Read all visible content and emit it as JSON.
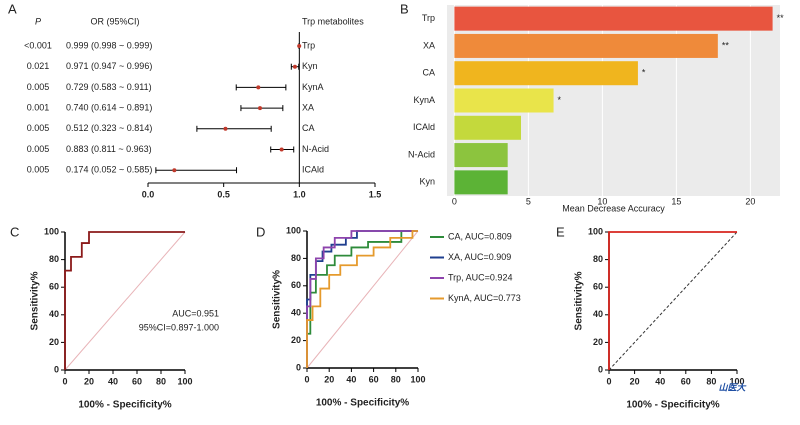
{
  "chart_data": [
    {
      "type": "forest",
      "panel_label": "A",
      "columns": [
        "P",
        "OR (95%CI)",
        "Trp metabolites"
      ],
      "categories": [
        "Trp",
        "Kyn",
        "KynA",
        "XA",
        "CA",
        "N-Acid",
        "ICAld"
      ],
      "p_labels": [
        "<0.001",
        "0.021",
        "0.005",
        "0.001",
        "0.005",
        "0.005",
        "0.005"
      ],
      "or_labels": [
        "0.999 (0.998 ~ 0.999)",
        "0.971 (0.947 ~ 0.996)",
        "0.729 (0.583 ~ 0.911)",
        "0.740 (0.614 ~ 0.891)",
        "0.512 (0.323 ~ 0.814)",
        "0.883 (0.811 ~ 0.963)",
        "0.174 (0.052 ~ 0.585)"
      ],
      "values": [
        0.999,
        0.971,
        0.729,
        0.74,
        0.512,
        0.883,
        0.174
      ],
      "lower": [
        0.998,
        0.947,
        0.583,
        0.614,
        0.323,
        0.811,
        0.052
      ],
      "upper": [
        0.999,
        0.996,
        0.911,
        0.891,
        0.814,
        0.963,
        0.585
      ],
      "xlim": [
        0,
        1.5
      ],
      "xticks": [
        {
          "value": 0,
          "label": "0.0"
        },
        0.5,
        {
          "value": 1,
          "label": "1.0"
        },
        1.5
      ],
      "reference_line": 1,
      "color": "#c0392b"
    },
    {
      "type": "bar",
      "orientation": "horizontal",
      "panel_label": "B",
      "xlabel": "Mean Decrease Accuracy",
      "categories": [
        "Trp",
        "XA",
        "CA",
        "KynA",
        "ICAld",
        "N-Acid",
        "Kyn"
      ],
      "values": [
        21.5,
        17.8,
        12.4,
        6.7,
        4.5,
        3.6,
        3.6
      ],
      "annotations": [
        "**",
        "**",
        "*",
        "*",
        null,
        null,
        null
      ],
      "colors": [
        "#e8553f",
        "#ef8a3a",
        "#f0b51e",
        "#e9e44a",
        "#c4d93c",
        "#8cc43e",
        "#5cb336"
      ],
      "xlim": [
        -0.5,
        22
      ],
      "xticks": [
        0,
        5,
        10,
        15,
        20
      ]
    },
    {
      "type": "line",
      "panel_label": "C",
      "xlabel": "100% - Specificity%",
      "ylabel": "Sensitivity%",
      "annotations": [
        "AUC=0.951",
        "95%CI=0.897-1.000"
      ],
      "series": [
        {
          "color": "#8b1a1a",
          "x": [
            0,
            0,
            5,
            5,
            14,
            14,
            20,
            20,
            25,
            100
          ],
          "values": [
            0,
            72,
            72,
            82,
            82,
            92,
            92,
            100,
            100,
            100
          ]
        }
      ],
      "xlim": [
        0,
        100
      ],
      "ylim": [
        0,
        100
      ],
      "xticks": [
        0,
        20,
        40,
        60,
        80,
        100
      ],
      "yticks": [
        0,
        20,
        40,
        60,
        80,
        100
      ],
      "diagonal": {
        "color": "#e8b4b8",
        "dashed": false
      }
    },
    {
      "type": "line",
      "panel_label": "D",
      "xlabel": "100% - Specificity%",
      "ylabel": "Sensitivity%",
      "series": [
        {
          "name": "CA, AUC=0.809",
          "color": "#2e8b3a",
          "x": [
            0,
            0,
            3,
            3,
            8,
            8,
            18,
            18,
            25,
            25,
            40,
            40,
            55,
            55,
            85,
            85,
            100
          ],
          "values": [
            0,
            25,
            25,
            55,
            55,
            68,
            68,
            75,
            75,
            82,
            82,
            88,
            88,
            92,
            92,
            100,
            100
          ]
        },
        {
          "name": "XA, AUC=0.909",
          "color": "#1f3f8f",
          "x": [
            0,
            0,
            3,
            3,
            8,
            8,
            14,
            14,
            22,
            22,
            35,
            35,
            45,
            45,
            100
          ],
          "values": [
            0,
            50,
            50,
            68,
            68,
            78,
            78,
            85,
            85,
            90,
            90,
            95,
            95,
            100,
            100
          ]
        },
        {
          "name": "Trp, AUC=0.924",
          "color": "#8e44ad",
          "x": [
            0,
            0,
            3,
            3,
            8,
            8,
            15,
            15,
            25,
            25,
            40,
            40,
            100
          ],
          "values": [
            0,
            45,
            45,
            65,
            65,
            80,
            80,
            88,
            88,
            95,
            95,
            100,
            100
          ]
        },
        {
          "name": "KynA, AUC=0.773",
          "color": "#e59a2c",
          "x": [
            0,
            0,
            5,
            5,
            12,
            12,
            20,
            20,
            30,
            30,
            45,
            45,
            60,
            60,
            75,
            75,
            95,
            95,
            100
          ],
          "values": [
            0,
            35,
            35,
            45,
            45,
            58,
            58,
            68,
            68,
            75,
            75,
            82,
            82,
            88,
            88,
            95,
            95,
            100,
            100
          ]
        }
      ],
      "xlim": [
        0,
        100
      ],
      "ylim": [
        0,
        100
      ],
      "xticks": [
        0,
        20,
        40,
        60,
        80,
        100
      ],
      "yticks": [
        0,
        20,
        40,
        60,
        80,
        100
      ],
      "diagonal": {
        "color": "#e8b4b8",
        "dashed": false
      }
    },
    {
      "type": "line",
      "panel_label": "E",
      "xlabel": "100% - Specificity%",
      "ylabel": "Sensitivity%",
      "series": [
        {
          "color": "#d7261e",
          "x": [
            0,
            0,
            100
          ],
          "values": [
            0,
            100,
            100
          ]
        }
      ],
      "xlim": [
        0,
        100
      ],
      "ylim": [
        0,
        100
      ],
      "xticks": [
        0,
        20,
        40,
        60,
        80,
        100
      ],
      "yticks": [
        0,
        20,
        40,
        60,
        80,
        100
      ],
      "diagonal": {
        "color": "#333333",
        "dashed": true
      },
      "watermark": "山医大"
    }
  ]
}
